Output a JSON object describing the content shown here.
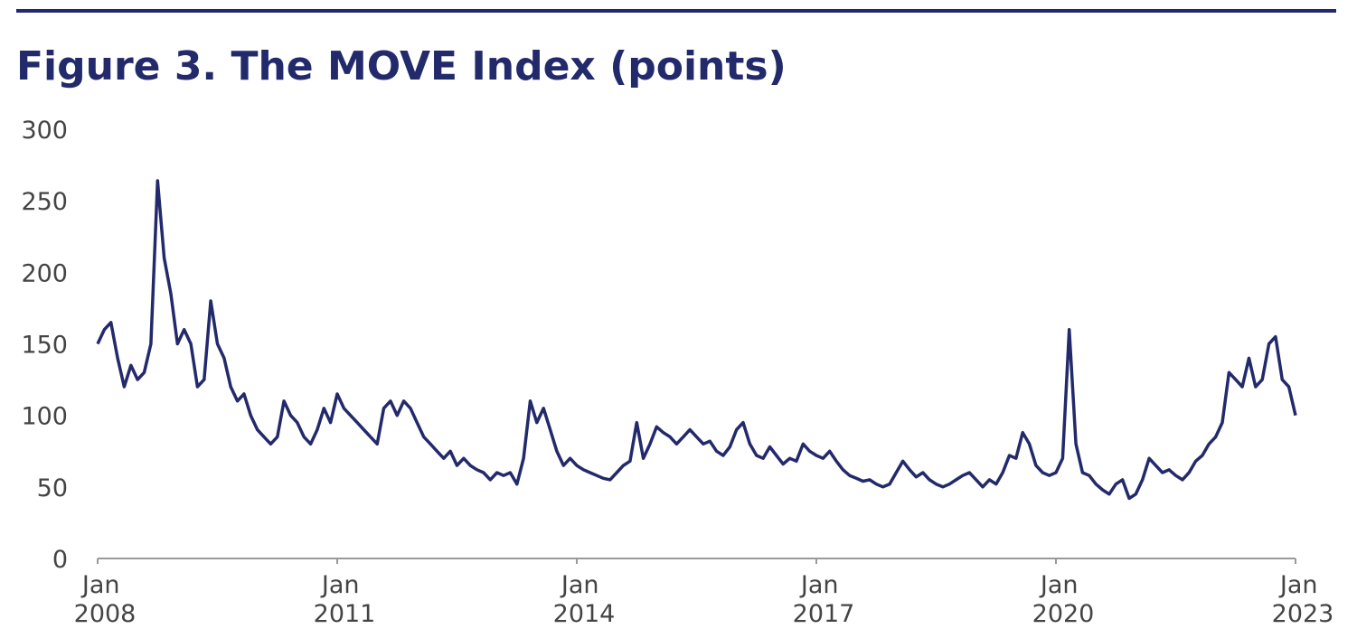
{
  "chart_data": {
    "type": "line",
    "title": "Figure 3.  The MOVE Index (points)",
    "x": [
      "2008-01",
      "2008-02",
      "2008-03",
      "2008-04",
      "2008-05",
      "2008-06",
      "2008-07",
      "2008-08",
      "2008-09",
      "2008-10",
      "2008-11",
      "2008-12",
      "2009-01",
      "2009-02",
      "2009-03",
      "2009-04",
      "2009-05",
      "2009-06",
      "2009-07",
      "2009-08",
      "2009-09",
      "2009-10",
      "2009-11",
      "2009-12",
      "2010-01",
      "2010-02",
      "2010-03",
      "2010-04",
      "2010-05",
      "2010-06",
      "2010-07",
      "2010-08",
      "2010-09",
      "2010-10",
      "2010-11",
      "2010-12",
      "2011-01",
      "2011-02",
      "2011-03",
      "2011-04",
      "2011-05",
      "2011-06",
      "2011-07",
      "2011-08",
      "2011-09",
      "2011-10",
      "2011-11",
      "2011-12",
      "2012-01",
      "2012-02",
      "2012-03",
      "2012-04",
      "2012-05",
      "2012-06",
      "2012-07",
      "2012-08",
      "2012-09",
      "2012-10",
      "2012-11",
      "2012-12",
      "2013-01",
      "2013-02",
      "2013-03",
      "2013-04",
      "2013-05",
      "2013-06",
      "2013-07",
      "2013-08",
      "2013-09",
      "2013-10",
      "2013-11",
      "2013-12",
      "2014-01",
      "2014-02",
      "2014-03",
      "2014-04",
      "2014-05",
      "2014-06",
      "2014-07",
      "2014-08",
      "2014-09",
      "2014-10",
      "2014-11",
      "2014-12",
      "2015-01",
      "2015-02",
      "2015-03",
      "2015-04",
      "2015-05",
      "2015-06",
      "2015-07",
      "2015-08",
      "2015-09",
      "2015-10",
      "2015-11",
      "2015-12",
      "2016-01",
      "2016-02",
      "2016-03",
      "2016-04",
      "2016-05",
      "2016-06",
      "2016-07",
      "2016-08",
      "2016-09",
      "2016-10",
      "2016-11",
      "2016-12",
      "2017-01",
      "2017-02",
      "2017-03",
      "2017-04",
      "2017-05",
      "2017-06",
      "2017-07",
      "2017-08",
      "2017-09",
      "2017-10",
      "2017-11",
      "2017-12",
      "2018-01",
      "2018-02",
      "2018-03",
      "2018-04",
      "2018-05",
      "2018-06",
      "2018-07",
      "2018-08",
      "2018-09",
      "2018-10",
      "2018-11",
      "2018-12",
      "2019-01",
      "2019-02",
      "2019-03",
      "2019-04",
      "2019-05",
      "2019-06",
      "2019-07",
      "2019-08",
      "2019-09",
      "2019-10",
      "2019-11",
      "2019-12",
      "2020-01",
      "2020-02",
      "2020-03",
      "2020-04",
      "2020-05",
      "2020-06",
      "2020-07",
      "2020-08",
      "2020-09",
      "2020-10",
      "2020-11",
      "2020-12",
      "2021-01",
      "2021-02",
      "2021-03",
      "2021-04",
      "2021-05",
      "2021-06",
      "2021-07",
      "2021-08",
      "2021-09",
      "2021-10",
      "2021-11",
      "2021-12",
      "2022-01",
      "2022-02",
      "2022-03",
      "2022-04",
      "2022-05",
      "2022-06",
      "2022-07",
      "2022-08",
      "2022-09",
      "2022-10",
      "2022-11",
      "2022-12",
      "2023-01"
    ],
    "series": [
      {
        "name": "MOVE Index",
        "color": "#232a6b",
        "values": [
          150,
          160,
          165,
          140,
          120,
          135,
          125,
          130,
          150,
          264,
          210,
          185,
          150,
          160,
          150,
          120,
          125,
          180,
          150,
          140,
          120,
          110,
          115,
          100,
          90,
          85,
          80,
          85,
          110,
          100,
          95,
          85,
          80,
          90,
          105,
          95,
          115,
          105,
          100,
          95,
          90,
          85,
          80,
          105,
          110,
          100,
          110,
          105,
          95,
          85,
          80,
          75,
          70,
          75,
          65,
          70,
          65,
          62,
          60,
          55,
          60,
          58,
          60,
          52,
          70,
          110,
          95,
          105,
          90,
          75,
          65,
          70,
          65,
          62,
          60,
          58,
          56,
          55,
          60,
          65,
          68,
          95,
          70,
          80,
          92,
          88,
          85,
          80,
          85,
          90,
          85,
          80,
          82,
          75,
          72,
          78,
          90,
          95,
          80,
          72,
          70,
          78,
          72,
          66,
          70,
          68,
          80,
          75,
          72,
          70,
          75,
          68,
          62,
          58,
          56,
          54,
          55,
          52,
          50,
          52,
          60,
          68,
          62,
          57,
          60,
          55,
          52,
          50,
          52,
          55,
          58,
          60,
          55,
          50,
          55,
          52,
          60,
          72,
          70,
          88,
          80,
          65,
          60,
          58,
          60,
          70,
          160,
          80,
          60,
          58,
          52,
          48,
          45,
          52,
          55,
          42,
          45,
          55,
          70,
          65,
          60,
          62,
          58,
          55,
          60,
          68,
          72,
          80,
          85,
          95,
          130,
          125,
          120,
          140,
          120,
          125,
          150,
          155,
          125,
          120,
          100
        ]
      }
    ],
    "xlim": [
      "2008-01",
      "2023-01"
    ],
    "xticks": [
      {
        "value": "2008-01",
        "label": "Jan 2008"
      },
      {
        "value": "2011-01",
        "label": "Jan 2011"
      },
      {
        "value": "2014-01",
        "label": "Jan 2014"
      },
      {
        "value": "2017-01",
        "label": "Jan 2017"
      },
      {
        "value": "2020-01",
        "label": "Jan 2020"
      },
      {
        "value": "2023-01",
        "label": "Jan 2023"
      }
    ],
    "ylim": [
      0,
      300
    ],
    "yticks": [
      0,
      50,
      100,
      150,
      200,
      250,
      300
    ],
    "grid": false
  }
}
